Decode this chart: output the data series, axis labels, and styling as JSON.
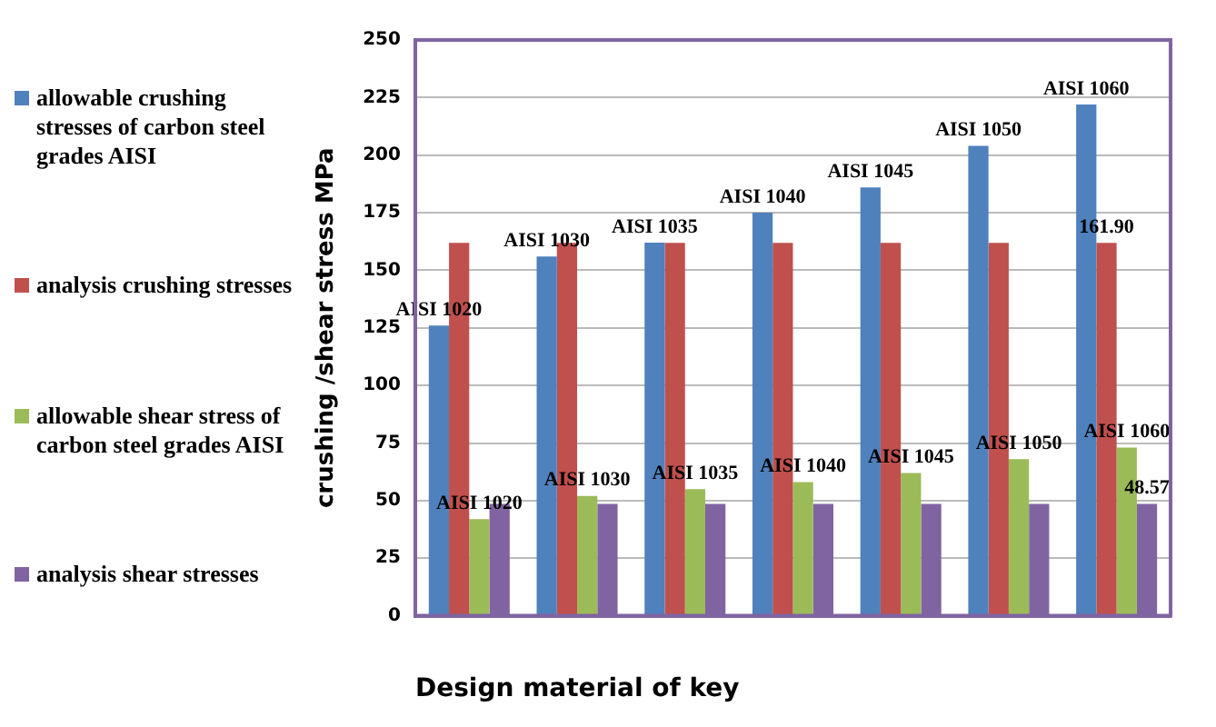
{
  "chart_data": {
    "type": "bar",
    "xlabel": "Design material of key",
    "ylabel": "crushing /shear stress MPa",
    "categories": [
      null,
      null,
      null,
      null,
      null,
      null,
      null
    ],
    "series": [
      {
        "name": "allowable crushing stresses of carbon steel grades AISI",
        "color": "#4f81bd",
        "values": [
          126,
          156,
          162,
          175,
          186,
          204,
          222
        ],
        "value_labels": [
          "AISI 1020",
          "AISI 1030",
          "AISI 1035",
          "AISI 1040",
          "AISI 1045",
          "AISI 1050",
          "AISI 1060"
        ]
      },
      {
        "name": "analysis crushing stresses",
        "color": "#c0504d",
        "values": [
          161.9,
          161.9,
          161.9,
          161.9,
          161.9,
          161.9,
          161.9
        ],
        "value_labels": [
          null,
          null,
          null,
          null,
          null,
          null,
          "161.90"
        ]
      },
      {
        "name": "allowable shear stress of carbon steel grades AISI",
        "color": "#9bbb59",
        "values": [
          42,
          52,
          55,
          58,
          62,
          68,
          73
        ],
        "value_labels": [
          "AISI 1020",
          "AISI 1030",
          "AISI 1035",
          "AISI 1040",
          "AISI 1045",
          "AISI 1050",
          "AISI 1060"
        ]
      },
      {
        "name": "analysis shear stresses",
        "color": "#8064a2",
        "values": [
          48.57,
          48.57,
          48.57,
          48.57,
          48.57,
          48.57,
          48.57
        ],
        "value_labels": [
          null,
          null,
          null,
          null,
          null,
          null,
          "48.57"
        ]
      }
    ],
    "ylim": [
      0,
      250
    ],
    "yticks": [
      0,
      25,
      50,
      75,
      100,
      125,
      150,
      175,
      200,
      225,
      250
    ],
    "grid": "y",
    "legend": "left"
  }
}
